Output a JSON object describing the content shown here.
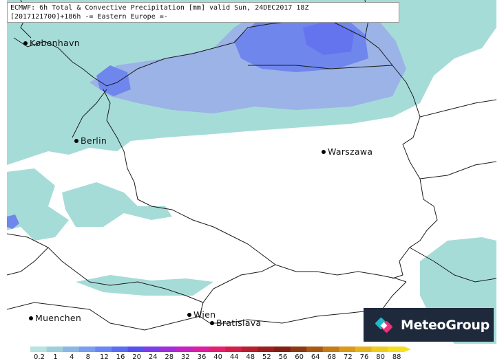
{
  "header": {
    "line1": "ECMWF: 6h Total & Convective Precipitation [mm] valid Sun, 24DEC2017 18Z",
    "line2": "[2017121700]+186h  -= Eastern Europe =-"
  },
  "cities": [
    {
      "name": "København"
    },
    {
      "name": "Berlin"
    },
    {
      "name": "Warszawa"
    },
    {
      "name": "Wien"
    },
    {
      "name": "Bratislava"
    },
    {
      "name": "Muenchen"
    }
  ],
  "brand": {
    "name": "MeteoGroup"
  },
  "colors": {
    "light_precip": "#a6dcd8",
    "moderate_precip": "#9bb3e6",
    "heavier_precip": "#6f86ec",
    "heaviest_precip": "#6474ef",
    "brand_bg": "#1e2a3c"
  },
  "legend": {
    "labels": [
      "0.2",
      "1",
      "4",
      "8",
      "12",
      "16",
      "20",
      "24",
      "28",
      "32",
      "36",
      "40",
      "44",
      "48",
      "52",
      "56",
      "60",
      "64",
      "68",
      "72",
      "76",
      "80",
      "88"
    ],
    "colors": [
      "#b7e3e0",
      "#9fd0da",
      "#89b8e6",
      "#7a9df0",
      "#6a86f5",
      "#5a6cf2",
      "#5550ee",
      "#7a3ee6",
      "#a02ed8",
      "#c423c0",
      "#de1ea0",
      "#e61e72",
      "#d41e4a",
      "#b71e2e",
      "#9a1e1e",
      "#821e14",
      "#8a3a12",
      "#a85a14",
      "#c47c16",
      "#d89a18",
      "#e6b41a",
      "#f0cc1c",
      "#f6e01e"
    ]
  }
}
